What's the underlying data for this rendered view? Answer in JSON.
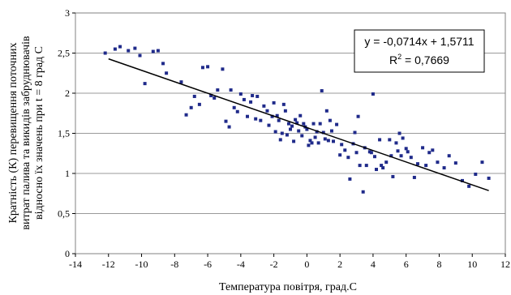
{
  "chart_data": {
    "type": "scatter",
    "title": "",
    "xlabel": "Температура повітря, град.С",
    "ylabel_lines": [
      "Кратність (К) перевищення поточних",
      "витрат палива та викидів забруднювачів",
      "відносно їх значень при t = 8 град С"
    ],
    "xlim": [
      -14,
      12
    ],
    "ylim": [
      0,
      3
    ],
    "x_ticks": [
      "-14",
      "-12",
      "-10",
      "-8",
      "-6",
      "-4",
      "-2",
      "0",
      "2",
      "4",
      "6",
      "8",
      "10",
      "12"
    ],
    "y_ticks": [
      "0",
      "0,5",
      "1",
      "1,5",
      "2",
      "2,5",
      "3"
    ],
    "grid": true,
    "legend": "none",
    "equation": "y = -0,0714x + 1,5711",
    "r2_label": "R",
    "r2_sup": "2",
    "r2_value": " = 0,7669",
    "trendline": {
      "slope": -0.0714,
      "intercept": 1.5711,
      "x_range": [
        -12,
        11
      ]
    },
    "colors": {
      "points": "#1f2a8a",
      "line": "#000000",
      "grid": "#9a9a9a"
    },
    "series": [
      {
        "x": [
          -12.2,
          -11.6,
          -11.3,
          -10.8,
          -10.4,
          -10.1,
          -9.8,
          -9.3,
          -9.0,
          -8.7,
          -8.5,
          -7.6,
          -7.3,
          -7.0,
          -6.8,
          -6.5,
          -6.3,
          -6.0,
          -5.8,
          -5.6,
          -5.4,
          -5.1,
          -4.9,
          -4.7,
          -4.6,
          -4.4,
          -4.2,
          -4.0,
          -3.8,
          -3.6,
          -3.4,
          -3.3,
          -3.1,
          -3.0,
          -2.8,
          -2.6,
          -2.4,
          -2.3,
          -2.1,
          -2.0,
          -1.9,
          -1.8,
          -1.7,
          -1.6,
          -1.5,
          -1.4,
          -1.3,
          -1.2,
          -1.1,
          -1.0,
          -0.9,
          -0.8,
          -0.7,
          -0.6,
          -0.5,
          -0.4,
          -0.3,
          -0.2,
          -0.1,
          0.0,
          0.1,
          0.2,
          0.3,
          0.4,
          0.5,
          0.6,
          0.7,
          0.8,
          0.9,
          1.0,
          1.1,
          1.2,
          1.3,
          1.4,
          1.5,
          1.6,
          1.8,
          2.0,
          2.1,
          2.3,
          2.5,
          2.6,
          2.8,
          2.9,
          3.0,
          3.1,
          3.2,
          3.4,
          3.5,
          3.6,
          3.8,
          3.9,
          4.0,
          4.1,
          4.2,
          4.4,
          4.5,
          4.6,
          4.8,
          5.0,
          5.1,
          5.2,
          5.4,
          5.5,
          5.6,
          5.7,
          5.8,
          6.0,
          6.1,
          6.3,
          6.5,
          6.7,
          7.0,
          7.2,
          7.4,
          7.6,
          7.9,
          8.3,
          8.6,
          9.0,
          9.4,
          9.8,
          10.2,
          10.6,
          11.0
        ],
        "y": [
          2.5,
          2.55,
          2.58,
          2.53,
          2.56,
          2.47,
          2.12,
          2.52,
          2.53,
          2.37,
          2.25,
          2.14,
          1.73,
          1.82,
          1.96,
          1.86,
          2.32,
          2.33,
          1.97,
          1.94,
          2.04,
          2.3,
          1.65,
          1.58,
          2.04,
          1.82,
          1.77,
          1.99,
          1.92,
          1.71,
          1.89,
          1.97,
          1.68,
          1.96,
          1.66,
          1.84,
          1.78,
          1.6,
          1.71,
          1.88,
          1.52,
          1.72,
          1.66,
          1.42,
          1.5,
          1.86,
          1.78,
          1.48,
          1.62,
          1.55,
          1.59,
          1.4,
          1.67,
          1.63,
          1.53,
          1.72,
          1.47,
          1.62,
          1.58,
          1.55,
          1.35,
          1.41,
          1.38,
          1.62,
          1.45,
          1.52,
          1.38,
          1.62,
          2.03,
          1.51,
          1.43,
          1.78,
          1.41,
          1.66,
          1.53,
          1.4,
          1.61,
          1.23,
          1.36,
          1.29,
          1.2,
          0.93,
          1.37,
          1.51,
          1.26,
          1.71,
          1.1,
          0.77,
          1.32,
          1.1,
          1.27,
          1.26,
          1.99,
          1.21,
          1.05,
          1.42,
          1.1,
          1.07,
          1.14,
          1.42,
          1.22,
          0.96,
          1.38,
          1.28,
          1.5,
          1.22,
          1.44,
          1.31,
          1.27,
          1.2,
          0.95,
          1.12,
          1.32,
          1.1,
          1.26,
          1.29,
          1.14,
          1.07,
          1.22,
          1.13,
          0.91,
          0.84,
          0.99,
          1.14,
          0.94
        ]
      }
    ]
  }
}
